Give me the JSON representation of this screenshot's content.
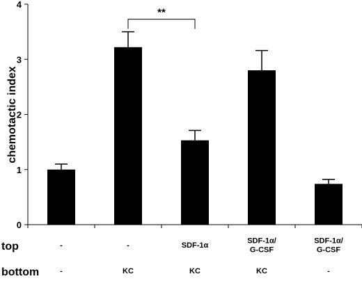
{
  "chart_data": {
    "type": "bar",
    "ylabel": "chemotactic index",
    "ylim": [
      0,
      4
    ],
    "yticks": [
      "0",
      "1",
      "2",
      "3",
      "4"
    ],
    "series": [
      {
        "values": [
          1.0,
          3.22,
          1.53,
          2.8,
          0.74
        ],
        "errors": [
          0.1,
          0.28,
          0.18,
          0.36,
          0.08
        ]
      }
    ],
    "rows": {
      "top": {
        "label": "top",
        "values": [
          "-",
          "-",
          "SDF-1α",
          "SDF-1α/\nG-CSF",
          "SDF-1α/\nG-CSF"
        ]
      },
      "bottom": {
        "label": "bottom",
        "values": [
          "-",
          "KC",
          "KC",
          "KC",
          "-"
        ]
      }
    },
    "annotations": [
      {
        "text": "**",
        "from_bar": 1,
        "to_bar": 2
      }
    ],
    "bar_color": "#000000"
  }
}
